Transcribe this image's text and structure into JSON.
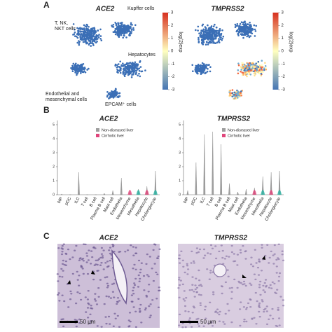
{
  "panel_a": {
    "label": "A",
    "plots": [
      {
        "title": "ACE2",
        "cluster_labels": [
          [
            "T, NK,",
            "NKT cells"
          ],
          [
            "Kupffer cells"
          ],
          [
            "Hepatocytes"
          ],
          [
            "Endothelial and",
            "mesenchymal cells"
          ],
          [
            "EPCAM⁺ cells"
          ]
        ],
        "colorbar_label": "log(2)exp",
        "colorbar_ticks": [
          3,
          2,
          1,
          0,
          -1,
          -2,
          -3
        ]
      },
      {
        "title": "TMPRSS2",
        "colorbar_label": "log(2)exp",
        "colorbar_ticks": [
          3,
          2,
          1,
          0,
          -1,
          -2,
          -3
        ]
      }
    ]
  },
  "panel_b": {
    "label": "B",
    "legend": [
      "Non-diseased liver",
      "Cirrhotic liver"
    ],
    "legend_colors": [
      "#9e9e9e",
      "#e0457b"
    ],
    "categories": [
      "MP",
      "pDC",
      "ILC",
      "T cell",
      "B cell",
      "Plasma B cell",
      "Mast cell",
      "Endothelia",
      "Mesenchyme",
      "Mesothelia",
      "Hepatocyte",
      "Cholangiocyte"
    ],
    "plots": [
      {
        "title": "ACE2",
        "ylim": [
          0,
          5.3
        ],
        "yticks": [
          0,
          1,
          2,
          3,
          4,
          5
        ],
        "violin_max": [
          0.05,
          0,
          1.6,
          0,
          0,
          0.1,
          0.3,
          1.2,
          0.2,
          0.4,
          0.6,
          1.7
        ]
      },
      {
        "title": "TMPRSS2",
        "ylim": [
          0,
          5.3
        ],
        "yticks": [
          0,
          1,
          2,
          3,
          4,
          5
        ],
        "violin_max": [
          0.3,
          2.3,
          4.3,
          4.5,
          3.6,
          0.8,
          0.2,
          0.4,
          0.5,
          1.3,
          1.6,
          1.7
        ]
      }
    ]
  },
  "panel_c": {
    "label": "C",
    "images": [
      {
        "title": "ACE2",
        "scale_bar": "50 μm"
      },
      {
        "title": "TMPRSS2",
        "scale_bar": "50 μm"
      }
    ]
  }
}
